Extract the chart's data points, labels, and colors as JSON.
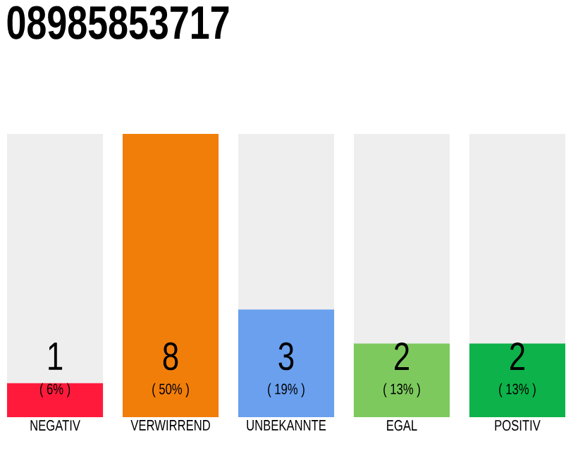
{
  "chart_data": {
    "type": "bar",
    "title": "08985853717",
    "categories": [
      "NEGATIV",
      "VERWIRREND",
      "UNBEKANNTE",
      "EGAL",
      "POSITIV"
    ],
    "values": [
      6,
      50,
      19,
      13,
      13
    ],
    "colors": [
      "#ff1a3c",
      "#f27e0a",
      "#6aa0ee",
      "#7dc95e",
      "#0db24a"
    ],
    "value_labels": [
      "( 6% )",
      "( 50% )",
      "( 19% )",
      "( 13% )",
      "( 13% )"
    ],
    "annotations": [
      "1",
      "8",
      "3",
      "2",
      "2"
    ],
    "tick_labels": "x"
  }
}
